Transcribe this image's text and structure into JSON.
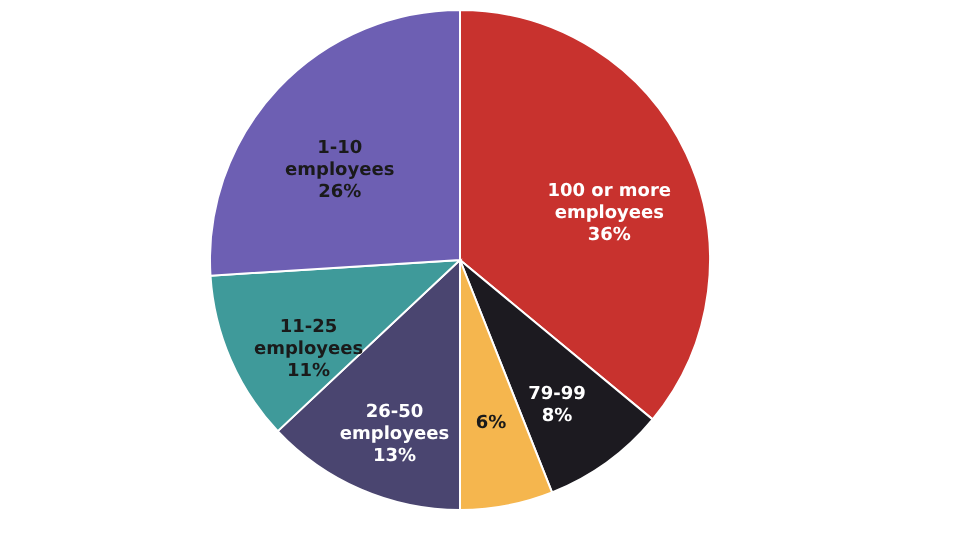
{
  "chart_data": {
    "type": "pie",
    "categories": [
      "100 or more employees",
      "79-99",
      null,
      "26-50 employees",
      "11-25 employees",
      "1-10 employees"
    ],
    "values": [
      36,
      8,
      6,
      13,
      11,
      26
    ],
    "colors": [
      "#c8322e",
      "#1c1a20",
      "#f5b64e",
      "#4a4570",
      "#3f9a9a",
      "#6d5fb3"
    ],
    "value_labels": [
      "36%",
      "8%",
      "6%",
      "13%",
      "11%",
      "26%"
    ]
  }
}
